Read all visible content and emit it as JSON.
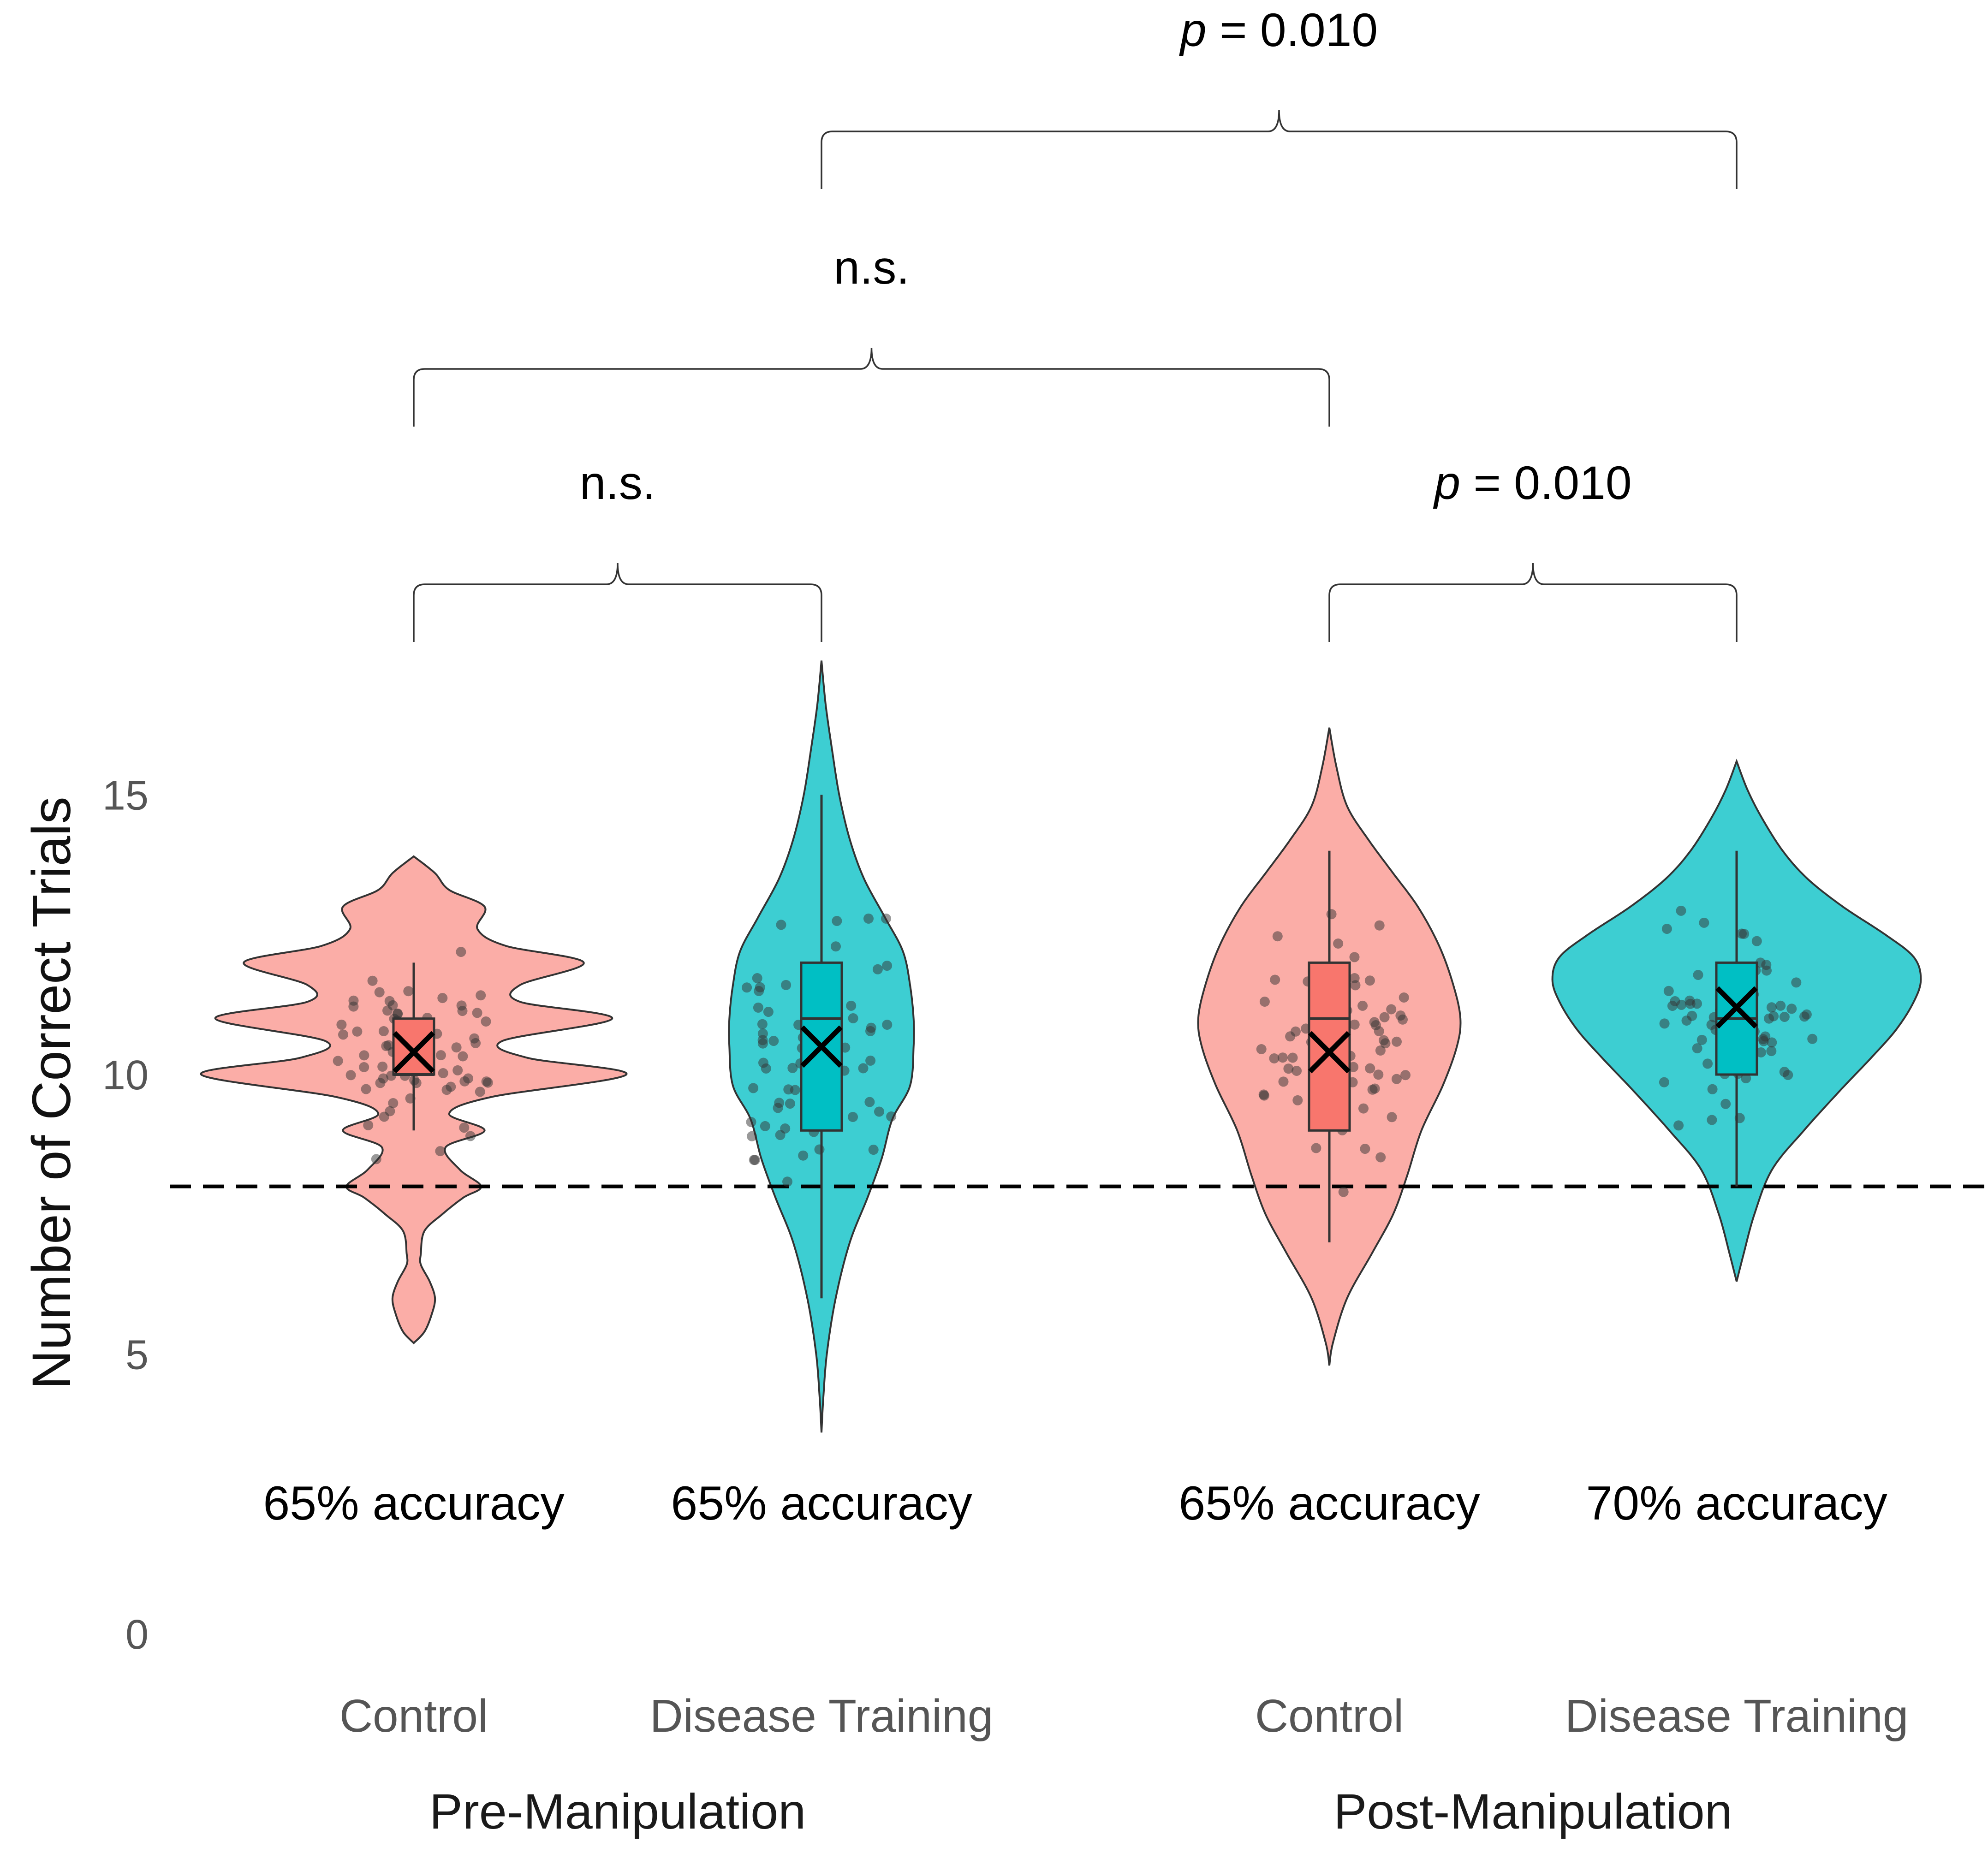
{
  "chart_data": {
    "type": "violin",
    "ylabel": "Number of Correct Trials",
    "xlabel": "",
    "ylim": [
      0,
      17.5
    ],
    "y_ticks": [
      "0",
      "5",
      "10",
      "15"
    ],
    "chance_line_y": 8,
    "facets": [
      {
        "label": "Pre-Manipulation",
        "groups": [
          0,
          1
        ]
      },
      {
        "label": "Post-Manipulation",
        "groups": [
          2,
          3
        ]
      }
    ],
    "groups": [
      {
        "phase": "Pre-Manipulation",
        "condition": "Control",
        "accuracy_label": "65% accuracy",
        "color": "#F8766D",
        "box": {
          "min": 9,
          "q1": 10,
          "median": 10,
          "q3": 11,
          "max": 12
        },
        "mean": 10.4,
        "violin_range": [
          5.2,
          13.9
        ]
      },
      {
        "phase": "Pre-Manipulation",
        "condition": "Disease Training",
        "accuracy_label": "65% accuracy",
        "color": "#00BFC4",
        "box": {
          "min": 6,
          "q1": 9,
          "median": 11,
          "q3": 12,
          "max": 15
        },
        "mean": 10.5,
        "violin_range": [
          3.6,
          17.4
        ]
      },
      {
        "phase": "Post-Manipulation",
        "condition": "Control",
        "accuracy_label": "65% accuracy",
        "color": "#F8766D",
        "box": {
          "min": 7,
          "q1": 9,
          "median": 11,
          "q3": 12,
          "max": 14
        },
        "mean": 10.4,
        "violin_range": [
          4.8,
          16.2
        ]
      },
      {
        "phase": "Post-Manipulation",
        "condition": "Disease Training",
        "accuracy_label": "70% accuracy",
        "color": "#00BFC4",
        "box": {
          "min": 8,
          "q1": 10,
          "median": 11,
          "q3": 12,
          "max": 14
        },
        "mean": 11.2,
        "violin_range": [
          6.3,
          15.6
        ]
      }
    ],
    "comparisons": [
      {
        "from": 0,
        "to": 1,
        "label": "n.s."
      },
      {
        "from": 2,
        "to": 3,
        "label": "p = 0.010"
      },
      {
        "from": 0,
        "to": 2,
        "label": "n.s."
      },
      {
        "from": 1,
        "to": 3,
        "label": "p = 0.010"
      }
    ]
  }
}
